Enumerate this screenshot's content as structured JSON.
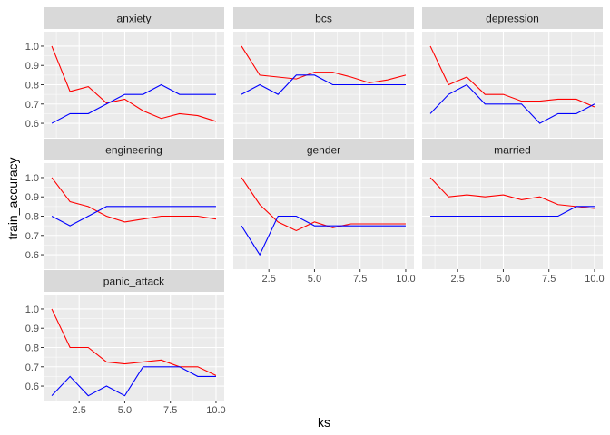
{
  "chart_data": {
    "type": "line",
    "xlabel": "ks",
    "ylabel": "train_accuracy",
    "xlim": [
      0.55,
      10.45
    ],
    "ylim": [
      0.525,
      1.075
    ],
    "x_ticks": [
      2.5,
      5.0,
      7.5,
      10.0
    ],
    "x_tick_labels": [
      "2.5",
      "5.0",
      "7.5",
      "10.0"
    ],
    "y_ticks": [
      0.6,
      0.7,
      0.8,
      0.9,
      1.0
    ],
    "y_tick_labels": [
      "0.6",
      "0.7",
      "0.8",
      "0.9",
      "1.0"
    ],
    "grid": true,
    "x": [
      1,
      2,
      3,
      4,
      5,
      6,
      7,
      8,
      9,
      10
    ],
    "series_colors": [
      "#ff0000",
      "#0000ff"
    ],
    "panels": [
      {
        "label": "anxiety",
        "red": [
          1.0,
          0.765,
          0.79,
          0.705,
          0.725,
          0.665,
          0.625,
          0.65,
          0.64,
          0.61
        ],
        "blue": [
          0.6,
          0.65,
          0.65,
          0.7,
          0.75,
          0.75,
          0.8,
          0.75,
          0.75,
          0.75
        ]
      },
      {
        "label": "bcs",
        "red": [
          1.0,
          0.85,
          0.84,
          0.83,
          0.865,
          0.865,
          0.84,
          0.81,
          0.825,
          0.85
        ],
        "blue": [
          0.75,
          0.8,
          0.75,
          0.85,
          0.85,
          0.8,
          0.8,
          0.8,
          0.8,
          0.8
        ]
      },
      {
        "label": "depression",
        "red": [
          1.0,
          0.8,
          0.84,
          0.75,
          0.75,
          0.715,
          0.715,
          0.725,
          0.725,
          0.685
        ],
        "blue": [
          0.65,
          0.75,
          0.8,
          0.7,
          0.7,
          0.7,
          0.6,
          0.65,
          0.65,
          0.7
        ]
      },
      {
        "label": "engineering",
        "red": [
          1.0,
          0.875,
          0.85,
          0.8,
          0.77,
          0.785,
          0.8,
          0.8,
          0.8,
          0.785
        ],
        "blue": [
          0.8,
          0.75,
          0.8,
          0.85,
          0.85,
          0.85,
          0.85,
          0.85,
          0.85,
          0.85
        ]
      },
      {
        "label": "gender",
        "red": [
          1.0,
          0.86,
          0.77,
          0.725,
          0.77,
          0.74,
          0.76,
          0.76,
          0.76,
          0.76
        ],
        "blue": [
          0.75,
          0.6,
          0.8,
          0.8,
          0.75,
          0.75,
          0.75,
          0.75,
          0.75,
          0.75
        ]
      },
      {
        "label": "married",
        "red": [
          1.0,
          0.9,
          0.91,
          0.9,
          0.91,
          0.885,
          0.9,
          0.86,
          0.85,
          0.84
        ],
        "blue": [
          0.8,
          0.8,
          0.8,
          0.8,
          0.8,
          0.8,
          0.8,
          0.8,
          0.85,
          0.85
        ]
      },
      {
        "label": "panic_attack",
        "red": [
          1.0,
          0.8,
          0.8,
          0.725,
          0.715,
          0.725,
          0.735,
          0.7,
          0.7,
          0.655
        ],
        "blue": [
          0.55,
          0.65,
          0.55,
          0.6,
          0.55,
          0.7,
          0.7,
          0.7,
          0.65,
          0.65
        ]
      }
    ]
  }
}
